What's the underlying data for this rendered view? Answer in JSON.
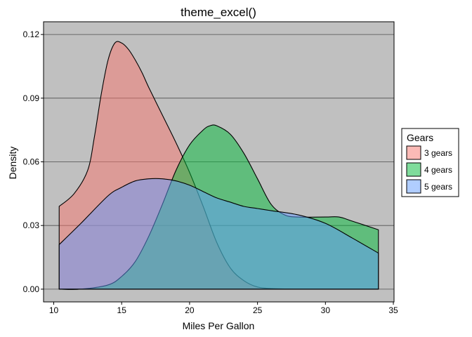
{
  "chart_data": {
    "type": "area",
    "title": "theme_excel()",
    "xlabel": "Miles Per Gallon",
    "ylabel": "Density",
    "xlim": [
      10.4,
      33.9
    ],
    "ylim": [
      0,
      0.12
    ],
    "xticks": [
      10,
      15,
      20,
      25,
      30,
      35
    ],
    "yticks": [
      0.0,
      0.03,
      0.06,
      0.09,
      0.12
    ],
    "ytick_labels": [
      "0.00",
      "0.03",
      "0.06",
      "0.09",
      "0.12"
    ],
    "grid": true,
    "legend_position": "right",
    "legend_title": "Gears",
    "series": [
      {
        "name": "3 gears",
        "color": "#F8766D",
        "x": [
          10.4,
          11.5,
          12.5,
          13.0,
          13.5,
          14.0,
          14.5,
          15.0,
          15.5,
          16.0,
          16.5,
          17.0,
          18.0,
          19.0,
          20.0,
          21.0,
          22.0,
          23.0,
          24.0,
          25.0,
          26.0,
          27.0,
          28.0,
          30.0,
          33.9
        ],
        "y": [
          0.039,
          0.045,
          0.056,
          0.072,
          0.092,
          0.108,
          0.116,
          0.116,
          0.113,
          0.108,
          0.102,
          0.095,
          0.082,
          0.069,
          0.055,
          0.039,
          0.022,
          0.01,
          0.004,
          0.001,
          0.0003,
          0.0001,
          0.0,
          0.0,
          0.0
        ]
      },
      {
        "name": "4 gears",
        "color": "#00BA38",
        "x": [
          10.4,
          12.0,
          14.0,
          15.0,
          16.0,
          17.0,
          18.0,
          19.0,
          20.0,
          21.0,
          21.5,
          22.0,
          23.0,
          24.0,
          25.0,
          26.0,
          27.0,
          28.0,
          30.0,
          31.0,
          32.0,
          33.9
        ],
        "y": [
          0.0,
          0.0,
          0.002,
          0.006,
          0.013,
          0.025,
          0.04,
          0.056,
          0.068,
          0.075,
          0.077,
          0.077,
          0.073,
          0.064,
          0.052,
          0.04,
          0.035,
          0.034,
          0.034,
          0.034,
          0.032,
          0.028
        ]
      },
      {
        "name": "5 gears",
        "color": "#619CFF",
        "x": [
          10.4,
          12.0,
          14.0,
          15.0,
          16.0,
          17.0,
          18.0,
          19.0,
          20.0,
          21.0,
          22.0,
          23.0,
          24.0,
          25.0,
          26.0,
          28.0,
          30.0,
          32.0,
          33.9
        ],
        "y": [
          0.021,
          0.031,
          0.044,
          0.048,
          0.051,
          0.052,
          0.052,
          0.051,
          0.049,
          0.046,
          0.043,
          0.041,
          0.039,
          0.038,
          0.037,
          0.035,
          0.031,
          0.024,
          0.017
        ]
      }
    ]
  }
}
